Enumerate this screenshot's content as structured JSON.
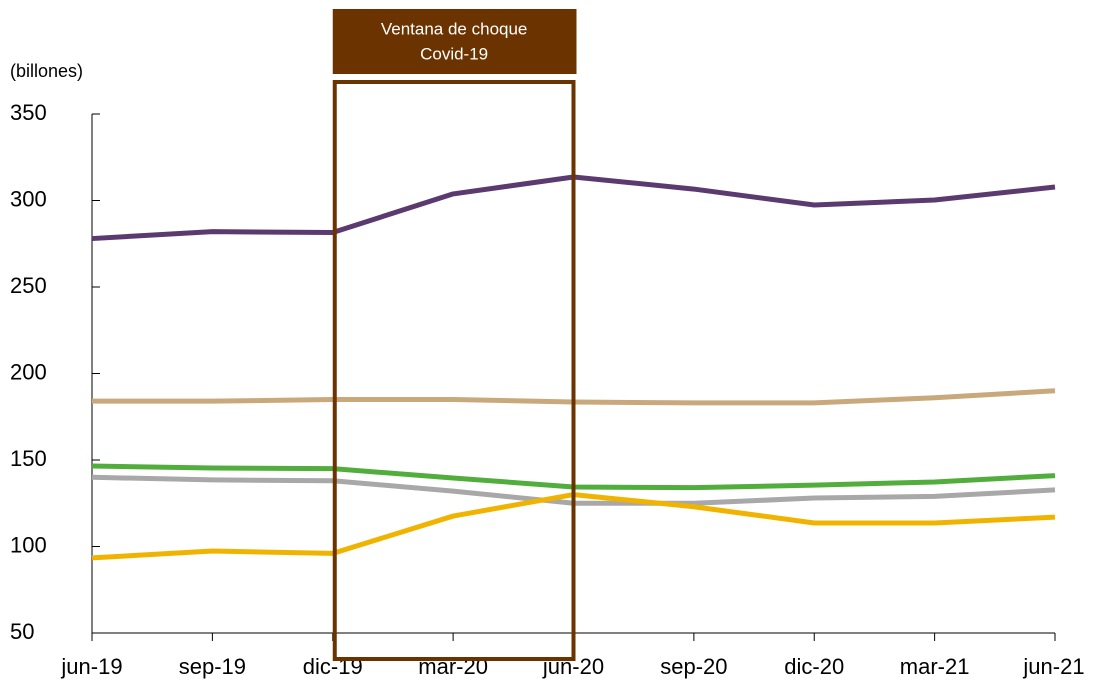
{
  "chart_data": {
    "type": "line",
    "y_label": "(billones)",
    "categories": [
      "jun-19",
      "sep-19",
      "dic-19",
      "mar-20",
      "jun-20",
      "sep-20",
      "dic-20",
      "mar-21",
      "jun-21"
    ],
    "series": [
      {
        "color": "#5b3a70",
        "values": [
          278,
          282,
          281.5,
          303.8,
          313.6,
          306.6,
          297.4,
          300.3,
          307.8
        ]
      },
      {
        "color": "#c9a97b",
        "values": [
          184,
          184,
          185,
          185,
          183.5,
          183,
          183,
          186,
          190
        ]
      },
      {
        "color": "#52ae3c",
        "values": [
          146.5,
          145.4,
          145,
          139.6,
          134.4,
          134,
          135.5,
          137.3,
          141
        ]
      },
      {
        "color": "#a8a8a8",
        "values": [
          140,
          138.5,
          138,
          132,
          125,
          125,
          128,
          129,
          132.7
        ]
      },
      {
        "color": "#f0b400",
        "values": [
          93.4,
          97.4,
          96,
          117.6,
          130,
          123,
          113.6,
          113.6,
          117
        ]
      }
    ],
    "ylim": [
      50,
      350
    ],
    "yticks": [
      50,
      100,
      150,
      200,
      250,
      300,
      350
    ],
    "window": {
      "label": [
        "Ventana de choque",
        "Covid-19"
      ],
      "from": "dic-19",
      "to": "jun-20",
      "color": "#6b3300"
    }
  }
}
